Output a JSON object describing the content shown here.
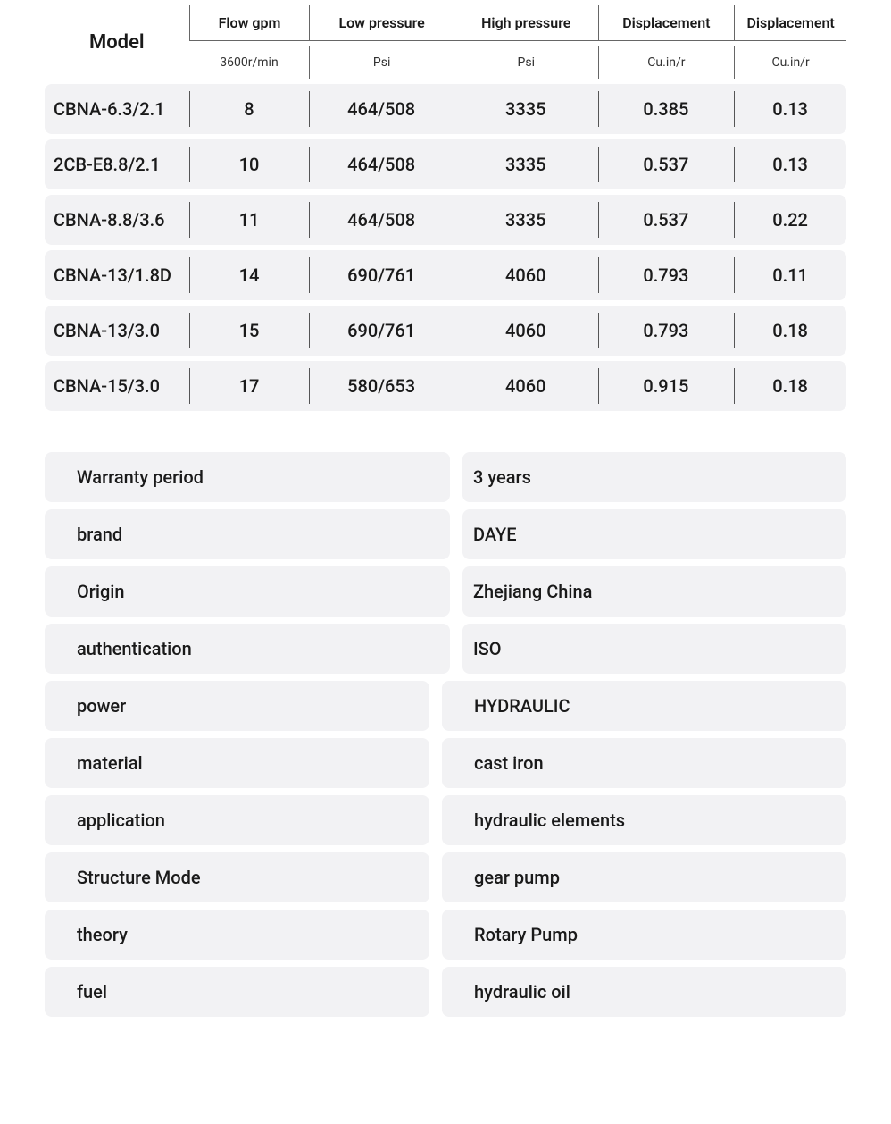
{
  "spec_table": {
    "model_header": "Model",
    "columns": [
      {
        "label": "Flow gpm",
        "unit": "3600r/min"
      },
      {
        "label": "Low pressure",
        "unit": "Psi"
      },
      {
        "label": "High pressure",
        "unit": "Psi"
      },
      {
        "label": "Displacement",
        "unit": "Cu.in/r"
      },
      {
        "label": "Displacement",
        "unit": "Cu.in/r"
      }
    ],
    "rows": [
      {
        "model": "CBNA-6.3/2.1",
        "cells": [
          "8",
          "464/508",
          "3335",
          "0.385",
          "0.13"
        ]
      },
      {
        "model": "2CB-E8.8/2.1",
        "cells": [
          "10",
          "464/508",
          "3335",
          "0.537",
          "0.13"
        ]
      },
      {
        "model": "CBNA-8.8/3.6",
        "cells": [
          "11",
          "464/508",
          "3335",
          "0.537",
          "0.22"
        ]
      },
      {
        "model": "CBNA-13/1.8D",
        "cells": [
          "14",
          "690/761",
          "4060",
          "0.793",
          "0.11"
        ]
      },
      {
        "model": "CBNA-13/3.0",
        "cells": [
          "15",
          "690/761",
          "4060",
          "0.793",
          "0.18"
        ]
      },
      {
        "model": "CBNA-15/3.0",
        "cells": [
          "17",
          "580/653",
          "4060",
          "0.915",
          "0.18"
        ]
      }
    ],
    "header_fontsize": 16,
    "subheader_fontsize": 14,
    "body_fontsize": 20,
    "row_bg": "#f2f2f4",
    "divider_color": "#555555",
    "border_radius": 8
  },
  "properties": {
    "rows": [
      {
        "label": "Warranty period",
        "value": "3 years",
        "variant": "wide"
      },
      {
        "label": "brand",
        "value": "DAYE",
        "variant": "wide"
      },
      {
        "label": "Origin",
        "value": "Zhejiang China",
        "variant": "wide"
      },
      {
        "label": "authentication",
        "value": "ISO",
        "variant": "wide"
      },
      {
        "label": "power",
        "value": "HYDRAULIC",
        "variant": "narrow"
      },
      {
        "label": "material",
        "value": "cast iron",
        "variant": "narrow"
      },
      {
        "label": "application",
        "value": "hydraulic elements",
        "variant": "narrow"
      },
      {
        "label": "Structure Mode",
        "value": "gear pump",
        "variant": "narrow"
      },
      {
        "label": "theory",
        "value": "Rotary Pump",
        "variant": "narrow"
      },
      {
        "label": "fuel",
        "value": "hydraulic oil",
        "variant": "narrow"
      }
    ],
    "pill_bg": "#f2f2f4",
    "fontsize": 20,
    "border_radius": 8
  },
  "page": {
    "background": "#ffffff",
    "text_color": "#1a1a1a"
  }
}
